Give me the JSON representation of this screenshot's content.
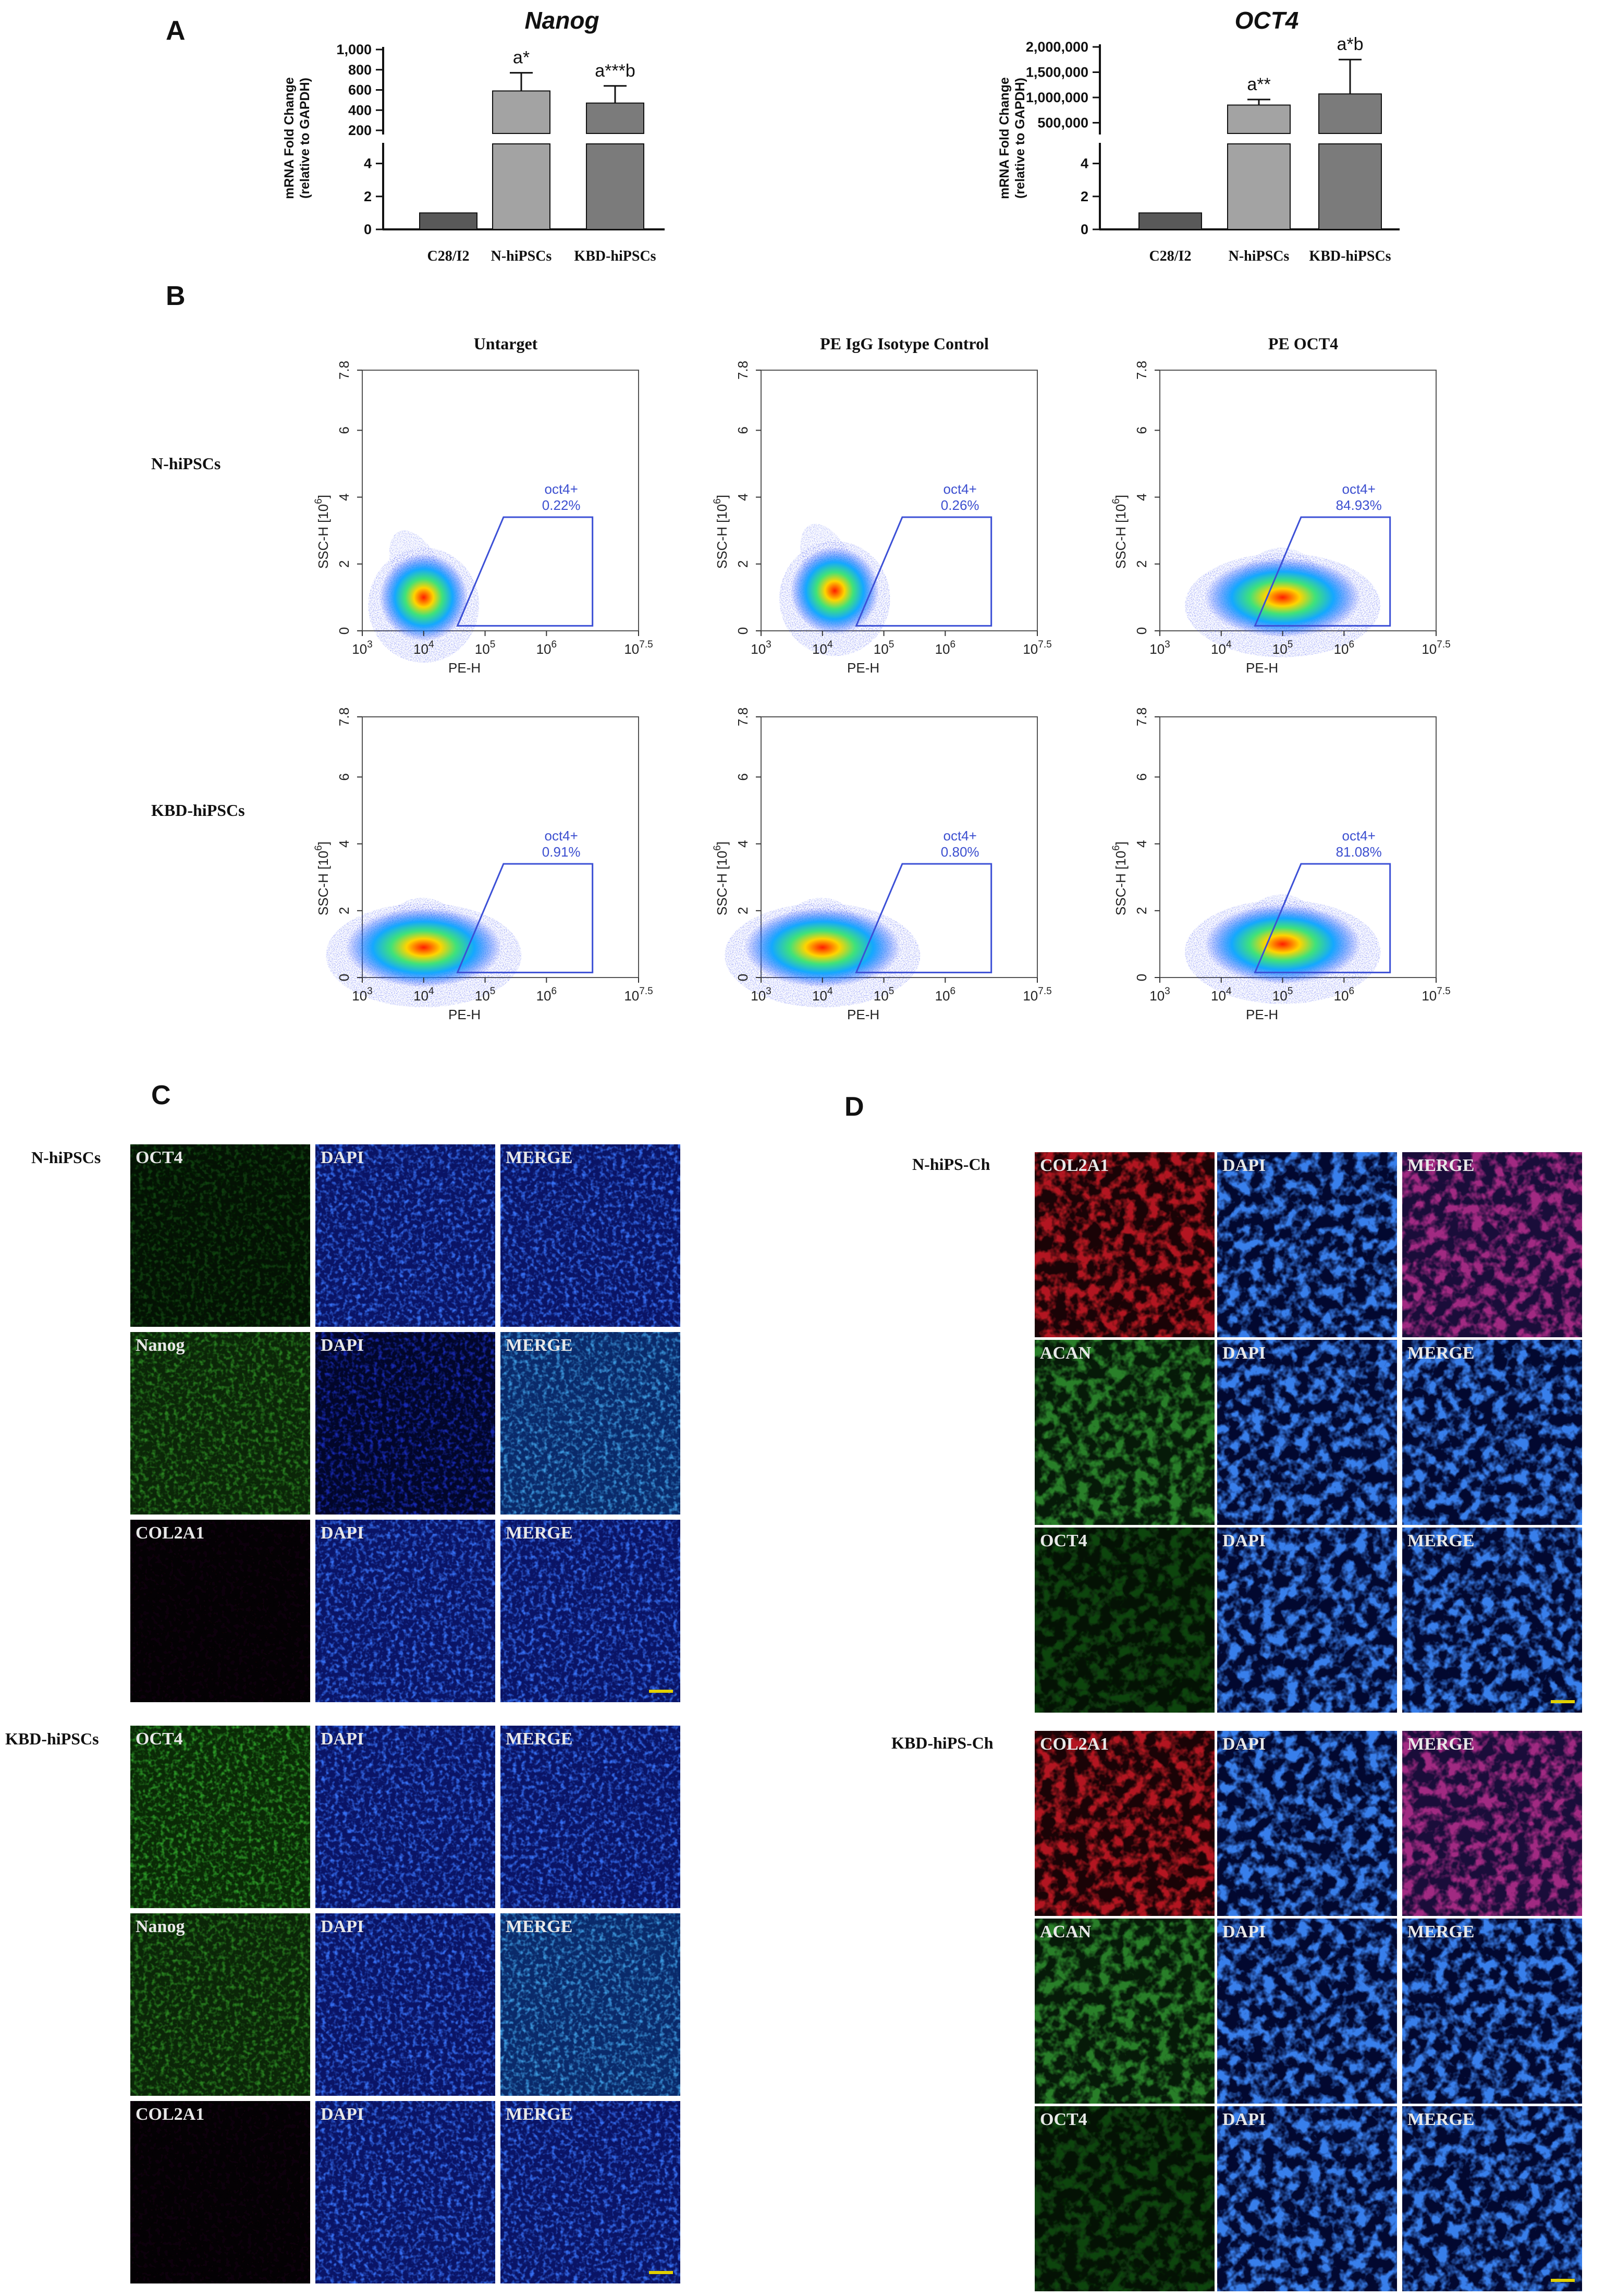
{
  "panels": {
    "A": "A",
    "B": "B",
    "C": "C",
    "D": "D"
  },
  "colors": {
    "bar_c28": "#595959",
    "bar_n": "#a3a3a3",
    "bar_kbd": "#7b7b7b",
    "gate": "#3c50d6",
    "gate_text": "#3c4fd0",
    "frame": "#555555"
  },
  "chart_data": [
    {
      "type": "bar",
      "title": "Nanog",
      "ylabel": "mRNA Fold Change (relative to GAPDH)",
      "ylabel_lines": [
        "mRNA Fold Change",
        "(relative to GAPDH)"
      ],
      "categories": [
        "C28/I2",
        "N-hiPSCs",
        "KBD-hiPSCs"
      ],
      "values": [
        1,
        590,
        470
      ],
      "errors": [
        0,
        180,
        170
      ],
      "annotations": [
        "",
        "a*",
        "a***b"
      ],
      "axis_break": true,
      "lower_range": [
        0,
        5
      ],
      "lower_ticks": [
        "0",
        "2",
        "4"
      ],
      "upper_range": [
        200,
        1000
      ],
      "upper_ticks": [
        "200",
        "400",
        "600",
        "800",
        "1,000"
      ]
    },
    {
      "type": "bar",
      "title": "OCT4",
      "ylabel": "mRNA Fold Change (relative to GAPDH)",
      "ylabel_lines": [
        "mRNA Fold Change",
        "(relative to GAPDH)"
      ],
      "categories": [
        "C28/I2",
        "N-hiPSCs",
        "KBD-hiPSCs"
      ],
      "values": [
        1,
        850000,
        1070000
      ],
      "errors": [
        0,
        110000,
        680000
      ],
      "annotations": [
        "",
        "a**",
        "a*b"
      ],
      "axis_break": true,
      "lower_range": [
        0,
        5
      ],
      "lower_ticks": [
        "0",
        "2",
        "4"
      ],
      "upper_range": [
        350000,
        2000000
      ],
      "upper_ticks": [
        "500,000",
        "1,000,000",
        "1,500,000",
        "2,000,000"
      ]
    },
    {
      "type": "scatter",
      "subtype": "flow-cytometry-density",
      "column_titles": [
        "Untarget",
        "PE IgG Isotype Control",
        "PE OCT4"
      ],
      "row_labels": [
        "N-hiPSCs",
        "KBD-hiPSCs"
      ],
      "xlabel": "PE-H",
      "ylabel": "SSC-H",
      "ylabel_unit": "10",
      "ylabel_exp": "6",
      "x_scale": "log",
      "xlim": [
        1000,
        31622776
      ],
      "x_ticks": [
        {
          "b": "10",
          "e": "3"
        },
        {
          "b": "10",
          "e": "4"
        },
        {
          "b": "10",
          "e": "5"
        },
        {
          "b": "10",
          "e": "6"
        },
        {
          "b": "10",
          "e": "7.5"
        }
      ],
      "ylim": [
        0,
        7.8
      ],
      "y_ticks": [
        "0",
        "2",
        "4",
        "6",
        "7.8"
      ],
      "gate_name": "oct4+",
      "gates": [
        [
          "0.22%",
          "0.26%",
          "84.93%"
        ],
        [
          "0.91%",
          "0.80%",
          "81.08%"
        ]
      ],
      "populations": [
        [
          {
            "cx": 4.0,
            "cy": 1.0,
            "spread": "narrow"
          },
          {
            "cx": 4.2,
            "cy": 1.2,
            "spread": "narrow"
          },
          {
            "cx": 5.0,
            "cy": 1.0,
            "spread": "wide"
          }
        ],
        [
          {
            "cx": 4.0,
            "cy": 0.9,
            "spread": "wide"
          },
          {
            "cx": 4.0,
            "cy": 0.9,
            "spread": "wide"
          },
          {
            "cx": 5.0,
            "cy": 1.0,
            "spread": "wide"
          }
        ]
      ]
    }
  ],
  "panelC": {
    "groups": [
      {
        "label": "N-hiPSCs",
        "rows": [
          {
            "stain": "OCT4",
            "channels": [
              "OCT4",
              "DAPI",
              "MERGE"
            ],
            "scale_bar": false
          },
          {
            "stain": "Nanog",
            "channels": [
              "Nanog",
              "DAPI",
              "MERGE"
            ],
            "scale_bar": false
          },
          {
            "stain": "COL2A1",
            "channels": [
              "COL2A1",
              "DAPI",
              "MERGE"
            ],
            "scale_bar": true
          }
        ]
      },
      {
        "label": "KBD-hiPSCs",
        "rows": [
          {
            "stain": "OCT4",
            "channels": [
              "OCT4",
              "DAPI",
              "MERGE"
            ],
            "scale_bar": false
          },
          {
            "stain": "Nanog",
            "channels": [
              "Nanog",
              "DAPI",
              "MERGE"
            ],
            "scale_bar": false
          },
          {
            "stain": "COL2A1",
            "channels": [
              "COL2A1",
              "DAPI",
              "MERGE"
            ],
            "scale_bar": true
          }
        ]
      }
    ]
  },
  "panelD": {
    "groups": [
      {
        "label": "N-hiPS-Ch",
        "rows": [
          {
            "stain": "COL2A1",
            "channels": [
              "COL2A1",
              "DAPI",
              "MERGE"
            ],
            "scale_bar": false
          },
          {
            "stain": "ACAN",
            "channels": [
              "ACAN",
              "DAPI",
              "MERGE"
            ],
            "scale_bar": false
          },
          {
            "stain": "OCT4",
            "channels": [
              "OCT4",
              "DAPI",
              "MERGE"
            ],
            "scale_bar": true
          }
        ]
      },
      {
        "label": "KBD-hiPS-Ch",
        "rows": [
          {
            "stain": "COL2A1",
            "channels": [
              "COL2A1",
              "DAPI",
              "MERGE"
            ],
            "scale_bar": false
          },
          {
            "stain": "ACAN",
            "channels": [
              "ACAN",
              "DAPI",
              "MERGE"
            ],
            "scale_bar": false
          },
          {
            "stain": "OCT4",
            "channels": [
              "OCT4",
              "DAPI",
              "MERGE"
            ],
            "scale_bar": true
          }
        ]
      }
    ]
  }
}
